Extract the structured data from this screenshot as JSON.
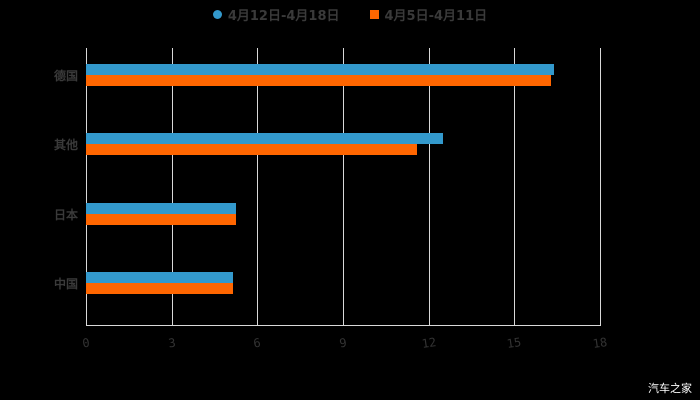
{
  "chart_data": {
    "type": "bar",
    "orientation": "horizontal",
    "title": "",
    "xlabel": "",
    "ylabel": "",
    "categories": [
      "德国",
      "其他",
      "日本",
      "中国"
    ],
    "series": [
      {
        "name": "4月12日-4月18日",
        "color": "#3399cc",
        "values": [
          16.4,
          12.5,
          5.25,
          5.15
        ]
      },
      {
        "name": "4月5日-4月11日",
        "color": "#ff6600",
        "values": [
          16.3,
          11.6,
          5.25,
          5.15
        ]
      }
    ],
    "xlim": [
      0,
      18
    ],
    "xticks": [
      "0",
      "3",
      "6",
      "9",
      "12",
      "15",
      "18"
    ],
    "grid": true,
    "legend_position": "top"
  },
  "legend": {
    "items": [
      {
        "label": "4月12日-4月18日",
        "color": "#3399cc",
        "marker": "circle"
      },
      {
        "label": "4月5日-4月11日",
        "color": "#ff6600",
        "marker": "square"
      }
    ]
  },
  "watermark": "汽车之家"
}
